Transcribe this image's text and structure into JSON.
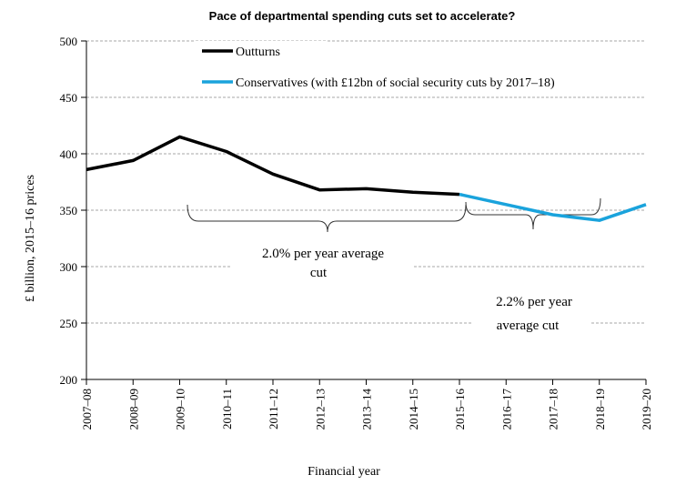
{
  "chart_data": {
    "type": "line",
    "title": "Pace of departmental spending cuts set to accelerate?",
    "xlabel": "Financial year",
    "ylabel": "£ billion, 2015–16 prices",
    "ylim": [
      200,
      500
    ],
    "yticks": [
      200,
      250,
      300,
      350,
      400,
      450,
      500
    ],
    "grid": true,
    "categories": [
      "2007–08",
      "2008–09",
      "2009–10",
      "2010–11",
      "2011–12",
      "2012–13",
      "2013–14",
      "2014–15",
      "2015–16",
      "2016–17",
      "2017–18",
      "2018–19",
      "2019–20"
    ],
    "series": [
      {
        "name": "Outturns",
        "color": "#000000",
        "values": [
          386,
          394,
          415,
          402,
          382,
          368,
          369,
          366,
          364,
          null,
          null,
          null,
          null
        ]
      },
      {
        "name": "Conservatives (with £12bn of social security cuts by 2017–18)",
        "color": "#1aa3dc",
        "values": [
          null,
          null,
          null,
          null,
          null,
          null,
          null,
          null,
          364,
          355,
          346,
          341,
          355
        ]
      }
    ],
    "annotations": [
      {
        "line1": "2.0% per year average",
        "line2": "cut"
      },
      {
        "line1": "2.2% per year",
        "line2": "average cut"
      }
    ]
  }
}
